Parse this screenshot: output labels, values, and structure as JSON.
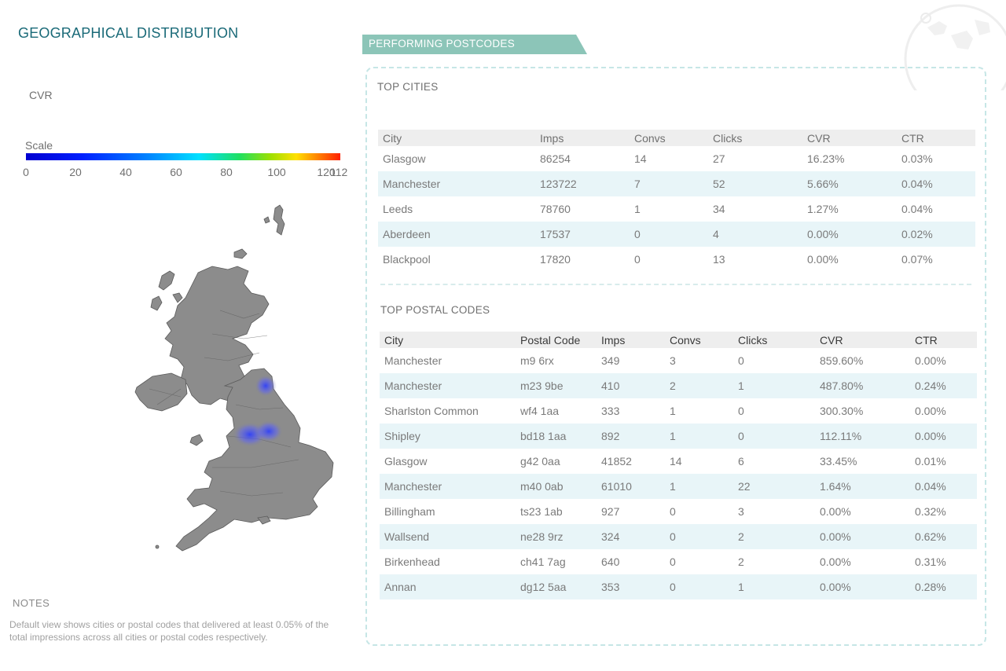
{
  "geo": {
    "title": "GEOGRAPHICAL DISTRIBUTION",
    "metric_label": "CVR",
    "scale_label": "Scale",
    "scale_ticks": [
      "0",
      "20",
      "40",
      "60",
      "80",
      "100",
      "120"
    ],
    "scale_end": "112",
    "map_shading": "Manchester-Leeds",
    "colors": {
      "title": "#1a6a78",
      "map_fill": "#8a8a8a",
      "hotspot": "#2a3cff"
    }
  },
  "notes": {
    "title": "NOTES",
    "text": "Default view shows cities or postal codes that delivered at least 0.05% of the total impressions across all cities or postal codes respectively."
  },
  "performing": {
    "banner_label": "PERFORMING POSTCODES",
    "banner_color": "#8cc5b8",
    "top_cities": {
      "title": "TOP CITIES",
      "columns": [
        "City",
        "Imps",
        "Convs",
        "Clicks",
        "CVR",
        "CTR"
      ],
      "rows": [
        [
          "Glasgow",
          "86254",
          "14",
          "27",
          "16.23%",
          "0.03%"
        ],
        [
          "Manchester",
          "123722",
          "7",
          "52",
          "5.66%",
          "0.04%"
        ],
        [
          "Leeds",
          "78760",
          "1",
          "34",
          "1.27%",
          "0.04%"
        ],
        [
          "Aberdeen",
          "17537",
          "0",
          "4",
          "0.00%",
          "0.02%"
        ],
        [
          "Blackpool",
          "17820",
          "0",
          "13",
          "0.00%",
          "0.07%"
        ]
      ]
    },
    "top_postal": {
      "title": "TOP POSTAL CODES",
      "columns": [
        "City",
        "Postal Code",
        "Imps",
        "Convs",
        "Clicks",
        "CVR",
        "CTR"
      ],
      "rows": [
        [
          "Manchester",
          "m9 6rx",
          "349",
          "3",
          "0",
          "859.60%",
          "0.00%"
        ],
        [
          "Manchester",
          "m23 9be",
          "410",
          "2",
          "1",
          "487.80%",
          "0.24%"
        ],
        [
          "Sharlston Common",
          "wf4 1aa",
          "333",
          "1",
          "0",
          "300.30%",
          "0.00%"
        ],
        [
          "Shipley",
          "bd18 1aa",
          "892",
          "1",
          "0",
          "112.11%",
          "0.00%"
        ],
        [
          "Glasgow",
          "g42 0aa",
          "41852",
          "14",
          "6",
          "33.45%",
          "0.01%"
        ],
        [
          "Manchester",
          "m40 0ab",
          "61010",
          "1",
          "22",
          "1.64%",
          "0.04%"
        ],
        [
          "Billingham",
          "ts23 1ab",
          "927",
          "0",
          "3",
          "0.00%",
          "0.32%"
        ],
        [
          "Wallsend",
          "ne28 9rz",
          "324",
          "0",
          "2",
          "0.00%",
          "0.62%"
        ],
        [
          "Birkenhead",
          "ch41 7ag",
          "640",
          "0",
          "2",
          "0.00%",
          "0.31%"
        ],
        [
          "Annan",
          "dg12 5aa",
          "353",
          "0",
          "1",
          "0.00%",
          "0.28%"
        ]
      ]
    }
  }
}
